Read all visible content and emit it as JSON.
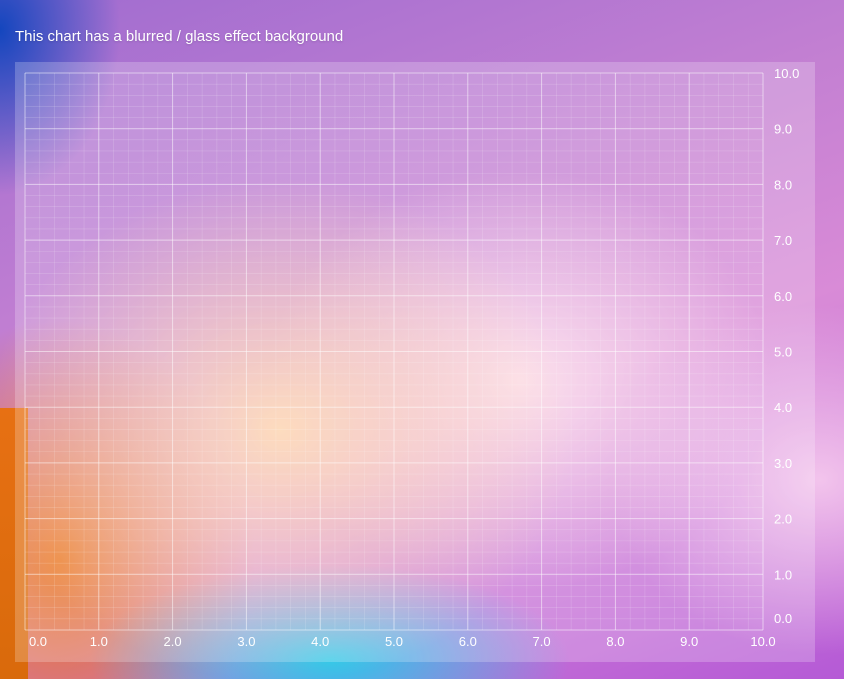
{
  "title": "This chart has a blurred / glass effect background",
  "chart_data": {
    "type": "scatter",
    "title": "This chart has a blurred / glass effect background",
    "xlabel": "",
    "ylabel": "",
    "xlim": [
      0,
      10
    ],
    "ylim": [
      0,
      10
    ],
    "x_ticks": [
      "0.0",
      "1.0",
      "2.0",
      "3.0",
      "4.0",
      "5.0",
      "6.0",
      "7.0",
      "8.0",
      "9.0",
      "10.0"
    ],
    "y_ticks": [
      "0.0",
      "1.0",
      "2.0",
      "3.0",
      "4.0",
      "5.0",
      "6.0",
      "7.0",
      "8.0",
      "9.0",
      "10.0"
    ],
    "y_axis_position": "right",
    "grid": true,
    "minor_grid": true,
    "series": []
  }
}
